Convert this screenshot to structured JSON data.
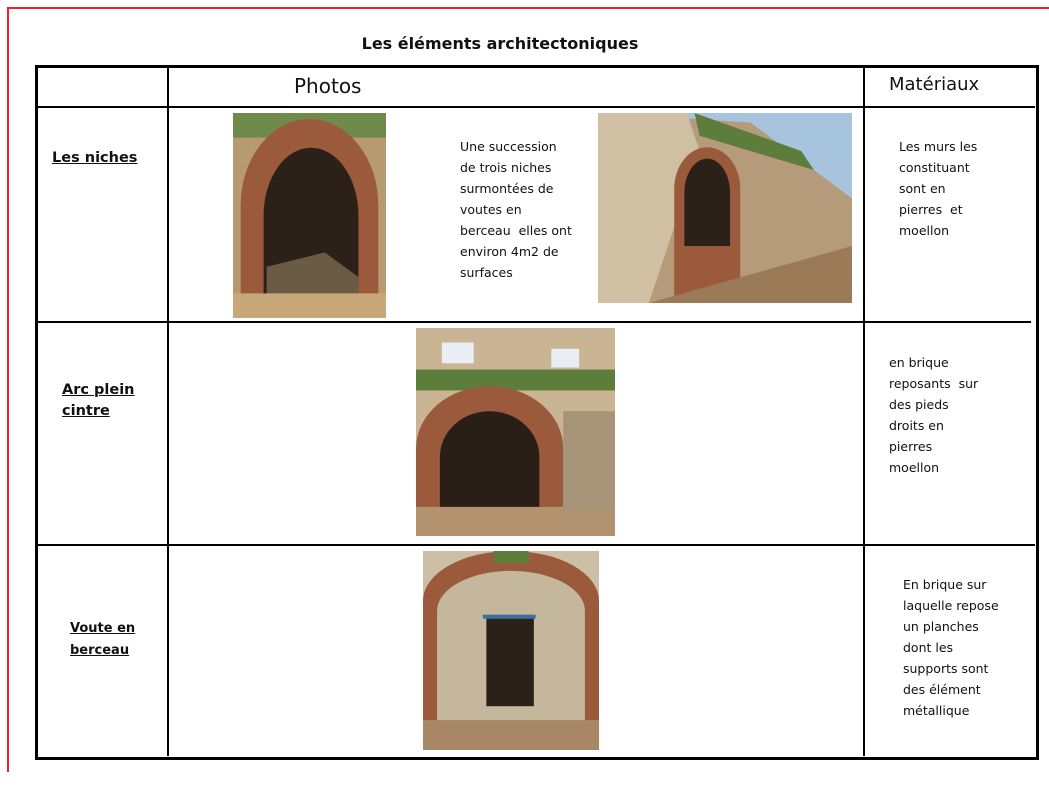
{
  "title": "Les éléments architectoniques",
  "table": {
    "headers": [
      "Photos",
      "Matériaux"
    ],
    "rows": [
      {
        "label": [
          "Les niches"
        ],
        "description": [
          "Une succession",
          "de trois niches",
          "surmontées de",
          "voutes en",
          "berceau  elles ont",
          "environ 4m2 de",
          "surfaces"
        ],
        "materials": [
          "Les murs les",
          "constituant",
          "sont en",
          "pierres  et",
          "moellon"
        ]
      },
      {
        "label": [
          "Arc plein",
          "cintre"
        ],
        "materials": [
          "en brique",
          "reposants  sur",
          "des pieds",
          "droits en",
          "pierres",
          "moellon"
        ]
      },
      {
        "label": [
          "Voute en",
          "berceau"
        ],
        "materials": [
          "En brique sur",
          "laquelle repose",
          "un planches",
          "dont les",
          "supports sont",
          "des élément",
          "métallique"
        ]
      }
    ]
  }
}
